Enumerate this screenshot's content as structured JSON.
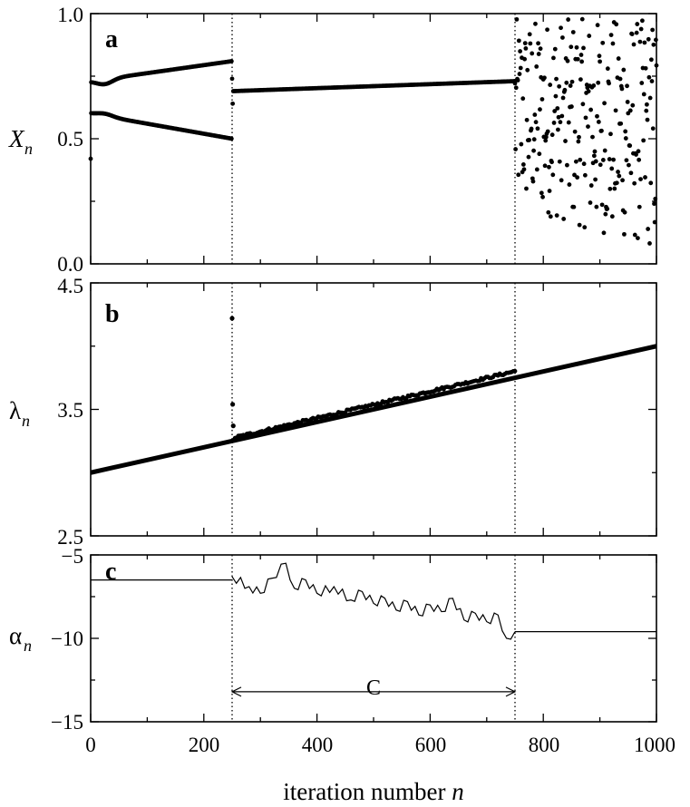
{
  "chart_data": [
    {
      "type": "scatter",
      "panel": "a",
      "ylabel_main": "X",
      "ylabel_sub": "n",
      "xlim": [
        0,
        1000
      ],
      "ylim": [
        0.0,
        1.0
      ],
      "yticks": [
        "0.0",
        "0.5",
        "1.0"
      ],
      "vlines": [
        250,
        750
      ],
      "segments": [
        {
          "range": [
            0,
            250
          ],
          "regime": "period-2",
          "upper": [
            0.73,
            0.81
          ],
          "lower": [
            0.6,
            0.5
          ],
          "first_point": 0.42
        },
        {
          "range": [
            250,
            750
          ],
          "regime": "fixed-point",
          "values": [
            0.69,
            0.73
          ],
          "transients": [
            0.74,
            0.64
          ]
        },
        {
          "range": [
            750,
            1000
          ],
          "regime": "chaotic",
          "spread": [
            0.05,
            0.98
          ]
        }
      ]
    },
    {
      "type": "line",
      "panel": "b",
      "ylabel_main": "λ",
      "ylabel_sub": "n",
      "xlim": [
        0,
        1000
      ],
      "ylim": [
        2.5,
        4.5
      ],
      "yticks": [
        "2.5",
        "3.5",
        "4.5"
      ],
      "vlines": [
        250,
        750
      ],
      "series": [
        {
          "kind": "line",
          "x": [
            0,
            1000
          ],
          "y": [
            3.0,
            4.0
          ]
        },
        {
          "kind": "points",
          "x": [
            250,
            251,
            252
          ],
          "y": [
            4.22,
            3.54,
            3.37
          ]
        },
        {
          "kind": "points-trend",
          "range": [
            250,
            750
          ],
          "y": [
            3.27,
            3.8
          ]
        }
      ]
    },
    {
      "type": "line",
      "panel": "c",
      "ylabel_main": "α",
      "ylabel_sub": "n",
      "xlim": [
        0,
        1000
      ],
      "ylim": [
        -15,
        -5
      ],
      "yticks": [
        "−5",
        "−10",
        "−15"
      ],
      "vlines": [
        250,
        750
      ],
      "series": [
        {
          "kind": "step",
          "x": [
            0,
            250
          ],
          "y": [
            -6.5,
            -6.5
          ]
        },
        {
          "kind": "walk",
          "x": [
            250,
            280,
            300,
            320,
            345,
            360,
            380,
            400,
            430,
            460,
            480,
            500,
            520,
            540,
            560,
            580,
            600,
            620,
            640,
            660,
            680,
            700,
            720,
            735,
            750
          ],
          "y": [
            -6.3,
            -6.9,
            -7.3,
            -6.4,
            -5.5,
            -7.0,
            -6.5,
            -7.3,
            -6.9,
            -7.7,
            -7.2,
            -7.9,
            -7.6,
            -8.3,
            -7.8,
            -8.6,
            -8.0,
            -8.4,
            -7.6,
            -8.9,
            -8.5,
            -9.0,
            -8.6,
            -10.0,
            -9.6
          ]
        },
        {
          "kind": "step",
          "x": [
            750,
            1000
          ],
          "y": [
            -9.6,
            -9.6
          ]
        }
      ],
      "annotation": {
        "label": "C",
        "from": 250,
        "to": 750,
        "y": -13.2
      }
    }
  ],
  "xticks": [
    "0",
    "200",
    "400",
    "600",
    "800",
    "1000"
  ],
  "xlabel_main": "iteration number ",
  "xlabel_var": "n",
  "panel_letters": [
    "a",
    "b",
    "c"
  ]
}
